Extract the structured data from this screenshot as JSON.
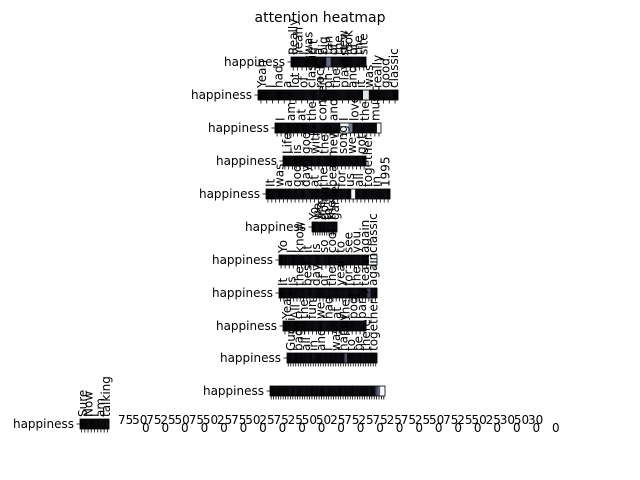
{
  "chart_data": {
    "type": "heatmap",
    "title": "attention heatmap",
    "xlabel": "",
    "ylabel": "",
    "colormap": "bone",
    "rows": [
      {
        "label": "happiness",
        "top": [
          "Really",
          "Yeah",
          "I",
          "was",
          "n't",
          "a",
          "big",
          "fan",
          "of",
          "the",
          "new",
          "look",
          "of",
          "the",
          "site"
        ],
        "values": [
          0.02,
          0.03,
          0.05,
          0.02,
          0.04,
          0.03,
          0.05,
          0.04,
          0.45,
          0.06,
          0.07,
          0.05,
          0.03,
          0.04,
          0.06,
          0.04,
          0.03
        ]
      },
      {
        "label": "happiness",
        "top": [
          "Yeah",
          "I",
          "had",
          "a",
          "lot",
          "of",
          "classic",
          "rock",
          "on",
          "the",
          "playlist",
          "and",
          "it",
          "was",
          "really",
          "good",
          "classic"
        ],
        "values": [
          0.02,
          0.03,
          0.05,
          0.02,
          0.04,
          0.03,
          0.05,
          0.04,
          0.06,
          0.03,
          0.07,
          0.05,
          0.03,
          0.04,
          0.06,
          0.04,
          0.05,
          0.03,
          0.9,
          0.03,
          0.04,
          0.05,
          0.06,
          0.02
        ]
      },
      {
        "label": "happiness",
        "top": [
          "I",
          "am",
          "at",
          "the",
          "concert",
          "and",
          "I",
          "love",
          "the",
          "music"
        ],
        "values": [
          0.02,
          0.03,
          0.05,
          0.02,
          0.04,
          0.03,
          0.05,
          0.04,
          0.06,
          0.03,
          0.07,
          0.05,
          0.03,
          0.04,
          0.06,
          0.04,
          0.96,
          0.96,
          0.5,
          0.04,
          0.06,
          0.03,
          0.05,
          0.04,
          0.05,
          0.98
        ]
      },
      {
        "label": "happiness",
        "top": [
          "Life",
          "is",
          "good",
          "with",
          "the",
          "new",
          "song",
          "we",
          "got"
        ],
        "values": [
          0.02,
          0.03,
          0.05,
          0.02,
          0.04,
          0.03,
          0.05,
          0.04,
          0.06,
          0.03,
          0.07,
          0.05,
          0.03,
          0.04,
          0.06,
          0.04,
          0.05,
          0.03,
          0.05,
          0.04,
          0.06,
          0.03
        ]
      },
      {
        "label": "happiness",
        "top": [
          "It",
          "was",
          "a",
          "good",
          "day",
          "at",
          "the",
          "beach",
          "for",
          "us",
          "all",
          "together",
          "in",
          "1995"
        ],
        "values": [
          0.02,
          0.03,
          0.05,
          0.02,
          0.04,
          0.03,
          0.05,
          0.04,
          0.06,
          0.03,
          0.07,
          0.05,
          0.03,
          0.04,
          0.06,
          0.04,
          0.05,
          0.03,
          0.05,
          0.04,
          0.06,
          0.03,
          0.97,
          0.04,
          0.06,
          0.03,
          0.05,
          0.04,
          0.05,
          0.03,
          0.06,
          0.04
        ]
      },
      {
        "label": "happiness",
        "top": [
          "Yo",
          "we",
          "are",
          "going",
          "to",
          "the",
          "game"
        ],
        "values": [
          0.02,
          0.03,
          0.05,
          0.02,
          0.04,
          0.03,
          0.05,
          0.04,
          0.06,
          0.03,
          0.07
        ]
      },
      {
        "label": "happiness",
        "top": [
          "Yo",
          "I",
          "know",
          "it",
          "is",
          "so",
          "cool",
          "to",
          "see",
          "you",
          "again",
          "classic"
        ],
        "values": [
          0.02,
          0.03,
          0.05,
          0.02,
          0.04,
          0.03,
          0.05,
          0.04,
          0.06,
          0.03,
          0.07,
          0.05,
          0.03,
          0.04,
          0.06,
          0.04,
          0.05,
          0.03,
          0.05,
          0.04,
          0.06,
          0.03,
          0.97,
          0.98
        ]
      },
      {
        "label": "happiness",
        "top": [
          "It",
          "is",
          "the",
          "best",
          "day",
          "of",
          "the",
          "year",
          "for",
          "the",
          "team",
          "again"
        ],
        "values": [
          0.02,
          0.03,
          0.05,
          0.02,
          0.04,
          0.03,
          0.05,
          0.04,
          0.06,
          0.03,
          0.07,
          0.05,
          0.03,
          0.04,
          0.06,
          0.04,
          0.05,
          0.03,
          0.05,
          0.04,
          0.06,
          0.03,
          0.04,
          0.06,
          0.03,
          0.05,
          0.04,
          0.3,
          0.05,
          0.03
        ]
      },
      {
        "label": "happiness",
        "top": [
          "Yeah",
          "All",
          "the",
          "fun",
          "we",
          "had",
          "at",
          "the",
          "pool",
          "party"
        ],
        "values": [
          0.02,
          0.03,
          0.05,
          0.02,
          0.04,
          0.03,
          0.05,
          0.04,
          0.06,
          0.03,
          0.07,
          0.05,
          0.03,
          0.04,
          0.06,
          0.04,
          0.05,
          0.03,
          0.05,
          0.04,
          0.06
        ]
      },
      {
        "label": "happiness",
        "top": [
          "Gucci",
          "bag",
          "all",
          "in",
          "and",
          "I",
          "was",
          "happy",
          "to",
          "be",
          "there",
          "together"
        ],
        "values": [
          0.02,
          0.03,
          0.05,
          0.02,
          0.04,
          0.03,
          0.05,
          0.04,
          0.06,
          0.03,
          0.07,
          0.05,
          0.03,
          0.04,
          0.06,
          0.04,
          0.05,
          0.03,
          0.05,
          0.04,
          0.06,
          0.03,
          0.04,
          0.35,
          0.05,
          0.03,
          0.04,
          0.05,
          0.04,
          0.03,
          0.06,
          0.04,
          0.05,
          0.04,
          0.03,
          0.06
        ]
      },
      {
        "label": "happiness",
        "top": [],
        "values": [
          0.02,
          0.03,
          0.05,
          0.02,
          0.04,
          0.03,
          0.05,
          0.04,
          0.06,
          0.03,
          0.07,
          0.05,
          0.03,
          0.04,
          0.06,
          0.04,
          0.05,
          0.03,
          0.05,
          0.04,
          0.06,
          0.03,
          0.04,
          0.06,
          0.03,
          0.05,
          0.04,
          0.05,
          0.04,
          0.03,
          0.06,
          0.04,
          0.05,
          0.04,
          0.03,
          0.06,
          0.04,
          0.05,
          0.03,
          0.05,
          0.04,
          0.06,
          0.04,
          0.05,
          0.3,
          0.45,
          0.98,
          0.97
        ]
      },
      {
        "label": "happiness",
        "top": [
          "Sure",
          "Now",
          "I",
          "am",
          "talking"
        ],
        "values": [
          0.02,
          0.03,
          0.05,
          0.02,
          0.04,
          0.03,
          0.05,
          0.04,
          0.06
        ]
      }
    ],
    "bottom_ticks": [
      "75",
      "50",
      "75",
      "25",
      "50",
      "75",
      "50",
      "25",
      "75",
      "50",
      "25",
      "75",
      "25",
      "50",
      "50",
      "25",
      "75",
      "25",
      "75",
      "25",
      "75",
      "25",
      "50",
      "75",
      "25",
      "50",
      "25",
      "30",
      "50",
      "30"
    ],
    "bottom_sub_ticks": [
      "0",
      "0",
      "0",
      "0",
      "0",
      "0",
      "0",
      "0",
      "0",
      "0",
      "0",
      "0",
      "0",
      "0",
      "0",
      "0",
      "0",
      "0",
      "0",
      "0",
      "0",
      "0"
    ]
  }
}
